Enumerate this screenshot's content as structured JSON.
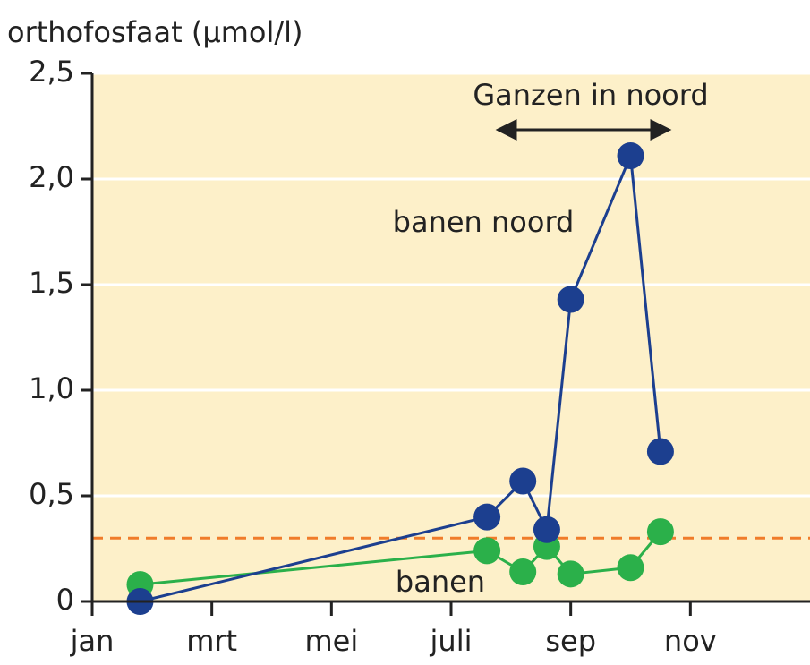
{
  "chart_data": {
    "type": "line",
    "title": "orthofosfaat (µmol/l)",
    "annotation": "Ganzen in noord",
    "xlim": [
      0,
      12
    ],
    "xticks": [
      {
        "value": 0,
        "label": "jan"
      },
      {
        "value": 2,
        "label": "mrt"
      },
      {
        "value": 4,
        "label": "mei"
      },
      {
        "value": 6,
        "label": "juli"
      },
      {
        "value": 8,
        "label": "sep"
      },
      {
        "value": 10,
        "label": "nov"
      }
    ],
    "ylim": [
      0,
      2.5
    ],
    "yticks": [
      0,
      {
        "value": 0.5,
        "label": "0,5"
      },
      {
        "value": 1.0,
        "label": "1,0"
      },
      {
        "value": 1.5,
        "label": "1,5"
      },
      {
        "value": 2.0,
        "label": "2,0"
      },
      {
        "value": 2.5,
        "label": "2,5"
      }
    ],
    "grid": true,
    "reference_line": {
      "value": 0.3,
      "color": "#f07c2a"
    },
    "series": [
      {
        "name": "banen noord",
        "color": "#1c3f8f",
        "x": [
          0.8,
          6.6,
          7.2,
          7.6,
          8.0,
          9.0,
          9.5
        ],
        "values": [
          0.0,
          0.4,
          0.57,
          0.34,
          1.43,
          2.11,
          0.71
        ]
      },
      {
        "name": "banen",
        "color": "#2bb04a",
        "x": [
          0.8,
          6.6,
          7.2,
          7.6,
          8.0,
          9.0,
          9.5
        ],
        "values": [
          0.08,
          0.24,
          0.14,
          0.26,
          0.13,
          0.16,
          0.33
        ]
      }
    ]
  }
}
